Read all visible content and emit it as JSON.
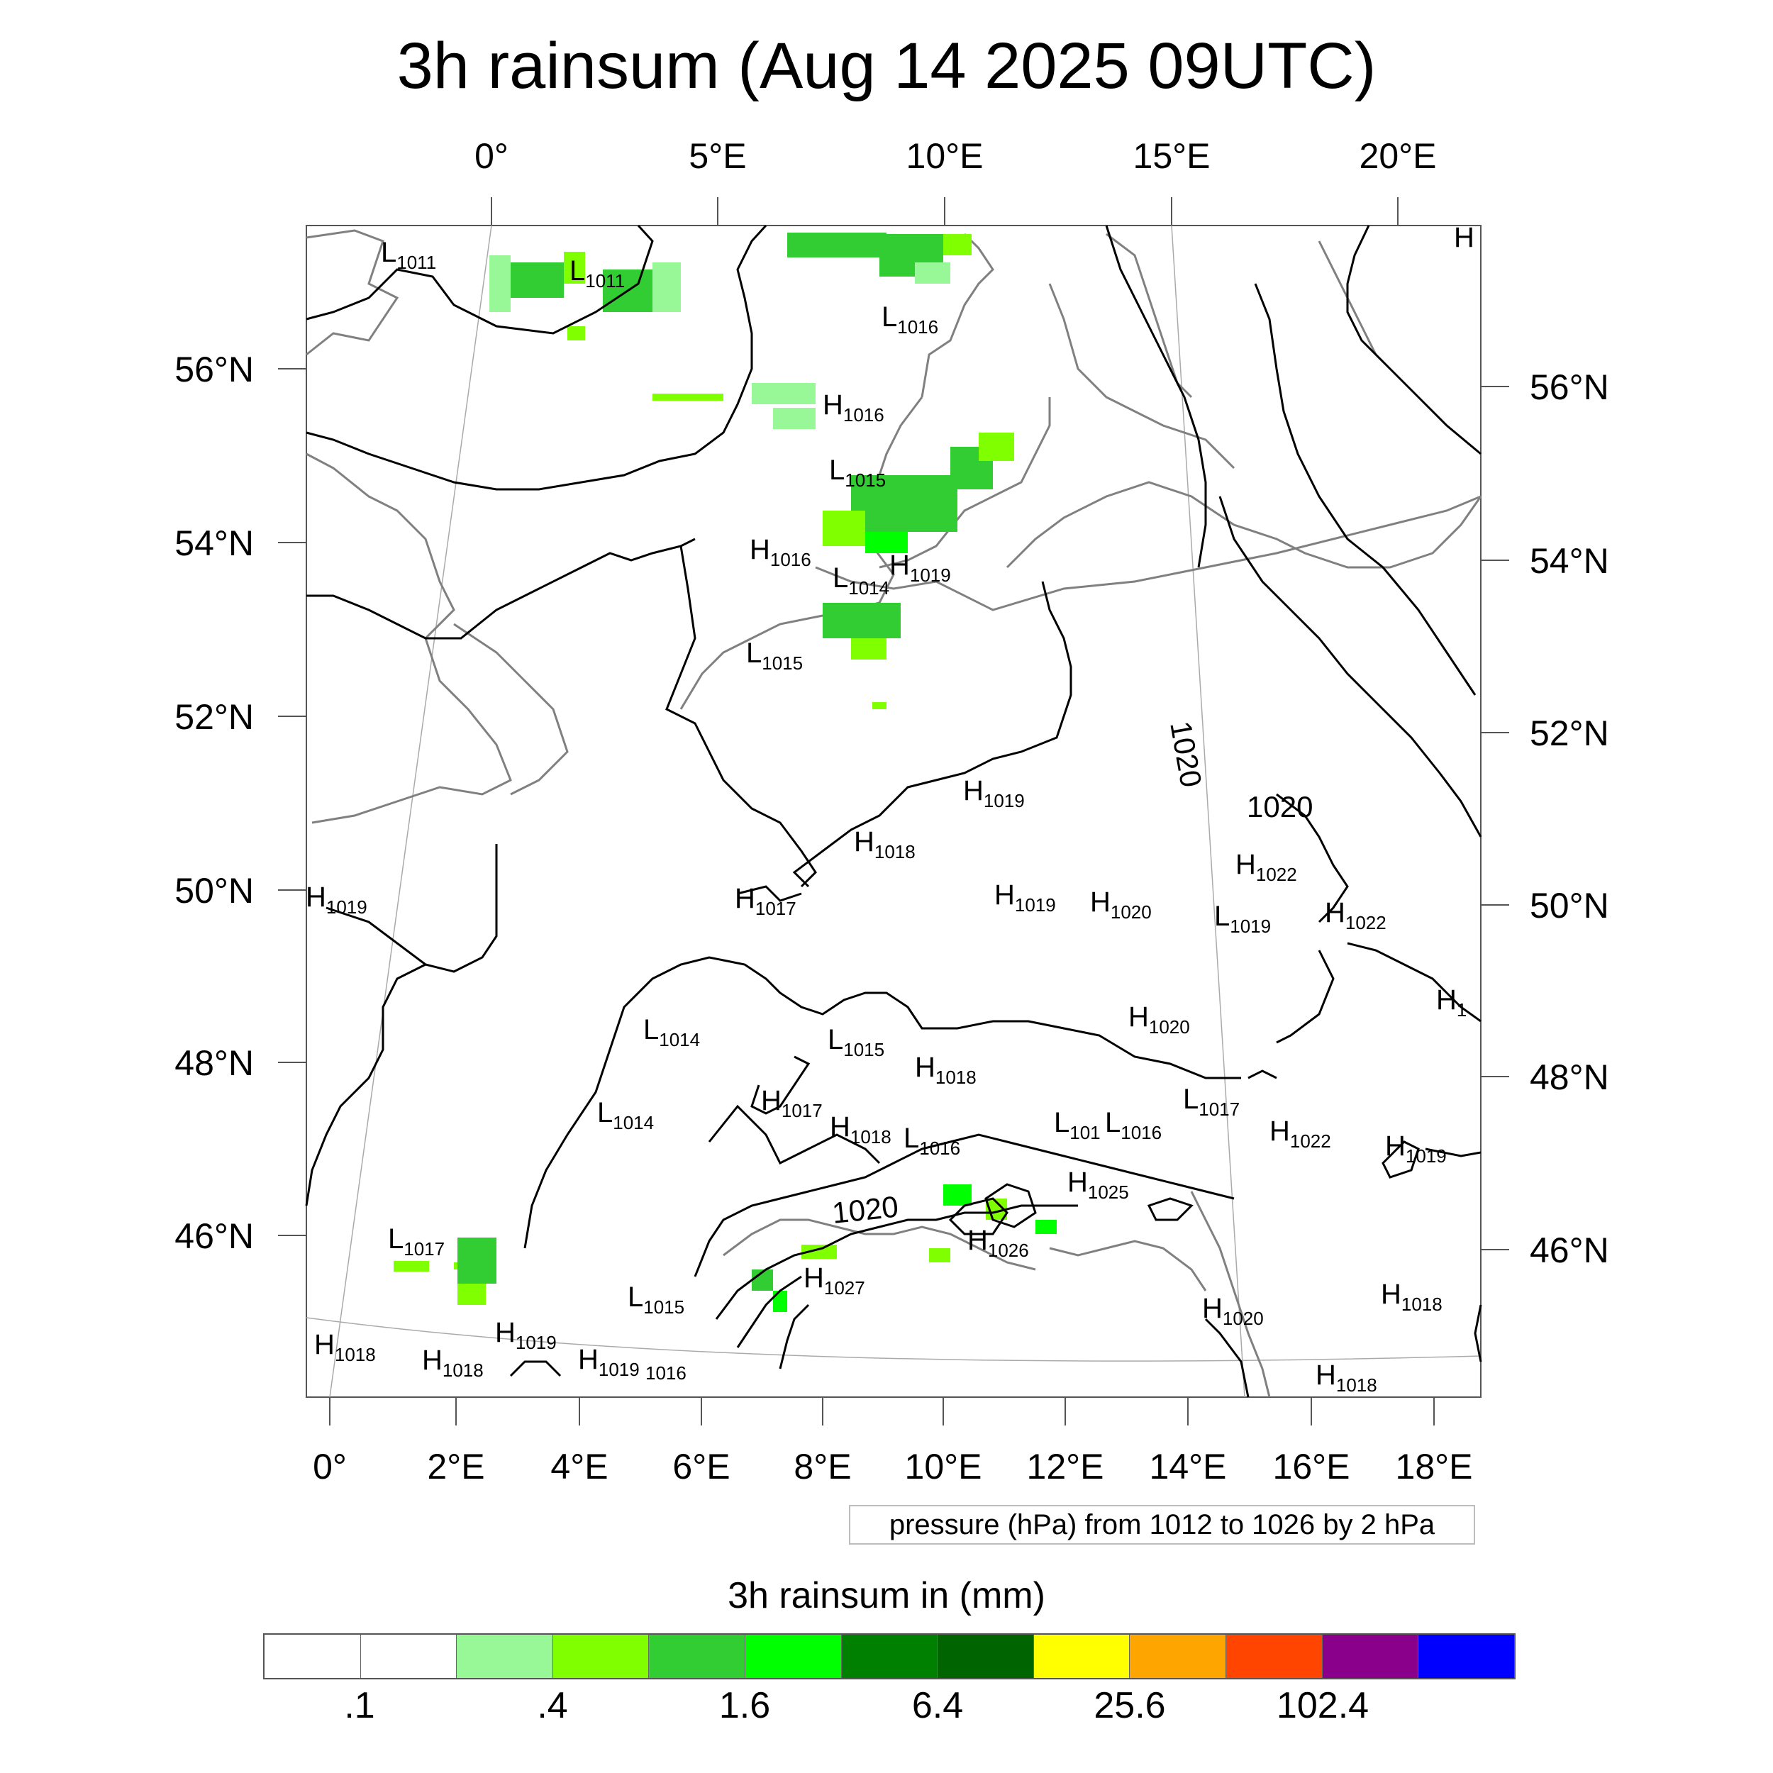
{
  "title": "3h rainsum (Aug 14 2025 09UTC)",
  "top_axis_labels": [
    "0°",
    "5°E",
    "10°E",
    "15°E",
    "20°E"
  ],
  "bottom_axis_labels": [
    "0°",
    "2°E",
    "4°E",
    "6°E",
    "8°E",
    "10°E",
    "12°E",
    "14°E",
    "16°E",
    "18°E"
  ],
  "left_axis_labels": [
    "56°N",
    "54°N",
    "52°N",
    "50°N",
    "48°N",
    "46°N"
  ],
  "right_axis_labels": [
    "56°N",
    "54°N",
    "52°N",
    "50°N",
    "48°N",
    "46°N"
  ],
  "pressure_note": "pressure (hPa) from 1012 to 1026 by 2 hPa",
  "legend": {
    "title": "3h rainsum in (mm)",
    "colors": [
      "#ffffff",
      "#ffffff",
      "#98f898",
      "#80ff00",
      "#32cd32",
      "#00ff00",
      "#008000",
      "#006400",
      "#ffff00",
      "#ffa500",
      "#ff4500",
      "#8b008b",
      "#0000ff"
    ],
    "labels": [
      ".1",
      ".4",
      "1.6",
      "6.4",
      "25.6",
      "102.4"
    ]
  },
  "map_labels": [
    {
      "letter": "L",
      "value": "1011"
    },
    {
      "letter": "L",
      "value": "1011"
    },
    {
      "letter": "L",
      "value": "1016"
    },
    {
      "letter": "H",
      "value": "1016"
    },
    {
      "letter": "L",
      "value": "1015"
    },
    {
      "letter": "H",
      "value": "1016"
    },
    {
      "letter": "L",
      "value": "1014"
    },
    {
      "letter": "H",
      "value": "1019"
    },
    {
      "letter": "L",
      "value": "1015"
    },
    {
      "letter": "H",
      "value": "1019"
    },
    {
      "letter": "H",
      "value": "1018"
    },
    {
      "letter": "H",
      "value": "1019"
    },
    {
      "letter": "H",
      "value": "1017"
    },
    {
      "letter": "H",
      "value": "1019"
    },
    {
      "letter": "H",
      "value": "1020"
    },
    {
      "letter": "L",
      "value": "1019"
    },
    {
      "letter": "H",
      "value": "1022"
    },
    {
      "letter": "H",
      "value": "1022"
    },
    {
      "letter": "H",
      "value": "1020"
    },
    {
      "letter": "L",
      "value": "1014"
    },
    {
      "letter": "L",
      "value": "1015"
    },
    {
      "letter": "H",
      "value": "1018"
    },
    {
      "letter": "L",
      "value": "1014"
    },
    {
      "letter": "H",
      "value": "1017"
    },
    {
      "letter": "H",
      "value": "1018"
    },
    {
      "letter": "L",
      "value": "1016"
    },
    {
      "letter": "L",
      "value": "101"
    },
    {
      "letter": "L",
      "value": "1016"
    },
    {
      "letter": "L",
      "value": "1017"
    },
    {
      "letter": "H",
      "value": "1022"
    },
    {
      "letter": "H",
      "value": "1019"
    },
    {
      "letter": "H",
      "value": "1025"
    },
    {
      "letter": "H",
      "value": "1026"
    },
    {
      "letter": "L",
      "value": "1017"
    },
    {
      "letter": "L",
      "value": "1015"
    },
    {
      "letter": "H",
      "value": "1027"
    },
    {
      "letter": "H",
      "value": "1020"
    },
    {
      "letter": "H",
      "value": "1018"
    },
    {
      "letter": "H",
      "value": "1018"
    },
    {
      "letter": "H",
      "value": "1018"
    },
    {
      "letter": "H",
      "value": "1019"
    },
    {
      "letter": "H",
      "value": "1019"
    },
    {
      "letter": "H",
      "value": "1016"
    },
    {
      "letter": "H",
      "value": "1018"
    },
    {
      "letter": "H",
      "value": "1"
    },
    {
      "letter": "H",
      "value": ""
    }
  ],
  "contour_labels": [
    "1020",
    "1020",
    "1020"
  ]
}
